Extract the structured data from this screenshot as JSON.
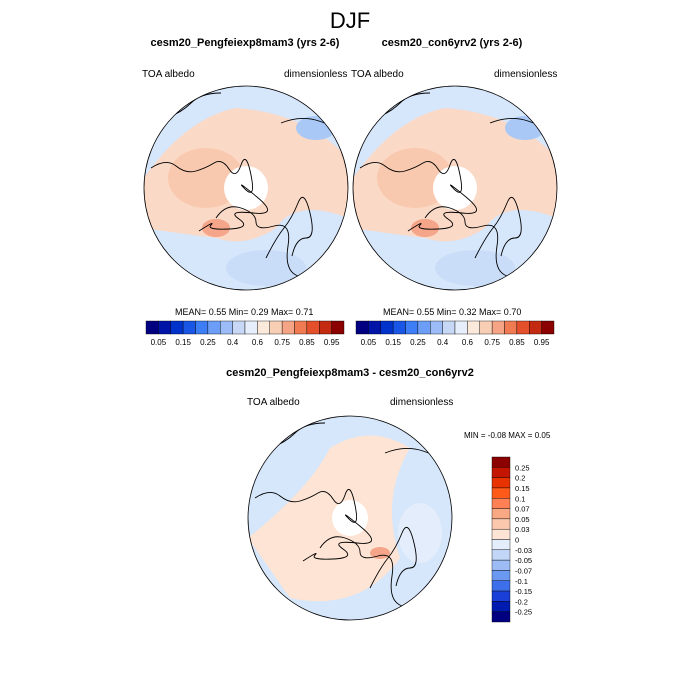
{
  "title": "DJF",
  "colors": {
    "ocean_base": "#d6e6fb",
    "land_warm": "#fbd9c7",
    "warm_mid": "#f4a58a",
    "cool_mid": "#a9c8f5",
    "coast": "#000000",
    "pole": "#ffffff"
  },
  "panels": [
    {
      "title": "cesm20_Pengfeiexp8mam3 (yrs 2-6)",
      "left_label": "TOA albedo",
      "right_label": "dimensionless",
      "stats": "MEAN=   0.55  Min=   0.29  Max=   0.71"
    },
    {
      "title": "cesm20_con6yrv2 (yrs 2-6)",
      "left_label": "TOA albedo",
      "right_label": "dimensionless",
      "stats": "MEAN=   0.55  Min=   0.32  Max=   0.70"
    }
  ],
  "diff_panel": {
    "title": "cesm20_Pengfeiexp8mam3 - cesm20_con6yrv2",
    "left_label": "TOA albedo",
    "right_label": "dimensionless",
    "stats": "MIN =   -0.08 MAX =    0.05"
  },
  "chart_data": [
    {
      "type": "heatmap",
      "projection": "north polar stereographic",
      "title": "cesm20_Pengfeiexp8mam3 (yrs 2-6)",
      "variable": "TOA albedo",
      "units": "dimensionless",
      "stats": {
        "mean": 0.55,
        "min": 0.29,
        "max": 0.71
      },
      "colorbar": {
        "orientation": "horizontal",
        "tick_labels": [
          "0.05",
          "0.15",
          "0.25",
          "0.4",
          "0.6",
          "0.75",
          "0.85",
          "0.95"
        ],
        "colors": [
          "#000080",
          "#0015a8",
          "#0033cc",
          "#1a56e6",
          "#3d7df5",
          "#6c9df7",
          "#9bbcf6",
          "#c6d8f5",
          "#e6eefb",
          "#fbe9dc",
          "#f8cfb5",
          "#f5a585",
          "#f07a52",
          "#e4502b",
          "#c42a10",
          "#8b0000"
        ]
      }
    },
    {
      "type": "heatmap",
      "projection": "north polar stereographic",
      "title": "cesm20_con6yrv2 (yrs 2-6)",
      "variable": "TOA albedo",
      "units": "dimensionless",
      "stats": {
        "mean": 0.55,
        "min": 0.32,
        "max": 0.7
      },
      "colorbar": {
        "orientation": "horizontal",
        "tick_labels": [
          "0.05",
          "0.15",
          "0.25",
          "0.4",
          "0.6",
          "0.75",
          "0.85",
          "0.95"
        ],
        "colors": [
          "#000080",
          "#0015a8",
          "#0033cc",
          "#1a56e6",
          "#3d7df5",
          "#6c9df7",
          "#9bbcf6",
          "#c6d8f5",
          "#e6eefb",
          "#fbe9dc",
          "#f8cfb5",
          "#f5a585",
          "#f07a52",
          "#e4502b",
          "#c42a10",
          "#8b0000"
        ]
      }
    },
    {
      "type": "heatmap",
      "projection": "north polar stereographic",
      "title": "cesm20_Pengfeiexp8mam3 - cesm20_con6yrv2",
      "variable": "TOA albedo",
      "units": "dimensionless",
      "stats": {
        "min": -0.08,
        "max": 0.05
      },
      "colorbar": {
        "orientation": "vertical",
        "tick_labels": [
          "0.25",
          "0.2",
          "0.15",
          "0.1",
          "0.07",
          "0.05",
          "0.03",
          "0",
          "-0.03",
          "-0.05",
          "-0.07",
          "-0.1",
          "-0.15",
          "-0.2",
          "-0.25"
        ],
        "colors": [
          "#8b0000",
          "#c41500",
          "#e83200",
          "#ff5a1a",
          "#ff8055",
          "#f9a884",
          "#fbc8ad",
          "#fde4d4",
          "#e3edfb",
          "#c2d6f7",
          "#9dbcf6",
          "#6b98f1",
          "#3d6fea",
          "#1a3fd8",
          "#001cb0",
          "#000080"
        ]
      }
    }
  ]
}
